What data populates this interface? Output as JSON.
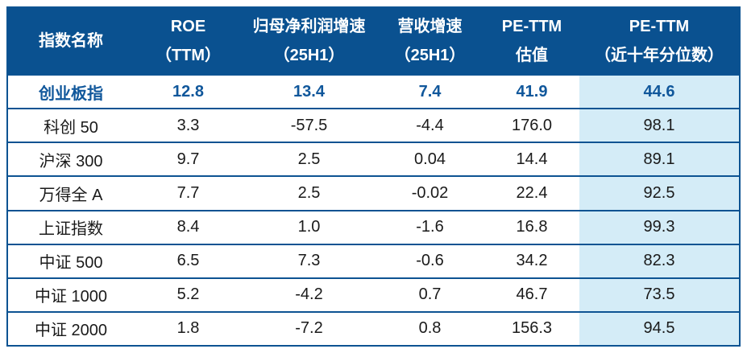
{
  "colors": {
    "header_bg": "#0a5190",
    "border": "#0d5392",
    "last_col_bg": "#d4ecf7",
    "highlight_text": "#10579b",
    "body_text": "#1a1a1a"
  },
  "chart_data": {
    "type": "table",
    "legend_position": "none",
    "columns": [
      {
        "id": "index-name",
        "lines": [
          "指数名称"
        ]
      },
      {
        "id": "roe-ttm",
        "lines": [
          "ROE",
          "（TTM）"
        ]
      },
      {
        "id": "net-profit-growth-25h1",
        "lines": [
          "归母净利润增速",
          "（25H1）"
        ]
      },
      {
        "id": "revenue-growth-25h1",
        "lines": [
          "营收增速",
          "（25H1）"
        ]
      },
      {
        "id": "pe-ttm-valuation",
        "lines": [
          "PE-TTM",
          "估值"
        ]
      },
      {
        "id": "pe-ttm-percentile",
        "lines": [
          "PE-TTM",
          "（近十年分位数）"
        ]
      }
    ],
    "highlighted_row": "创业板指",
    "shaded_column": "pe-ttm-percentile",
    "rows": [
      {
        "name": "创业板指",
        "highlight": true,
        "values": [
          "12.8",
          "13.4",
          "7.4",
          "41.9",
          "44.6"
        ]
      },
      {
        "name": "科创 50",
        "highlight": false,
        "values": [
          "3.3",
          "-57.5",
          "-4.4",
          "176.0",
          "98.1"
        ]
      },
      {
        "name": "沪深 300",
        "highlight": false,
        "values": [
          "9.7",
          "2.5",
          "0.04",
          "14.4",
          "89.1"
        ]
      },
      {
        "name": "万得全 A",
        "highlight": false,
        "values": [
          "7.7",
          "2.5",
          "-0.02",
          "22.4",
          "92.5"
        ]
      },
      {
        "name": "上证指数",
        "highlight": false,
        "values": [
          "8.4",
          "1.0",
          "-1.6",
          "16.8",
          "99.3"
        ]
      },
      {
        "name": "中证 500",
        "highlight": false,
        "values": [
          "6.5",
          "7.3",
          "-0.6",
          "34.2",
          "82.3"
        ]
      },
      {
        "name": "中证 1000",
        "highlight": false,
        "values": [
          "5.2",
          "-4.2",
          "0.7",
          "46.7",
          "73.5"
        ]
      },
      {
        "name": "中证 2000",
        "highlight": false,
        "values": [
          "1.8",
          "-7.2",
          "0.8",
          "156.3",
          "94.5"
        ]
      }
    ]
  }
}
